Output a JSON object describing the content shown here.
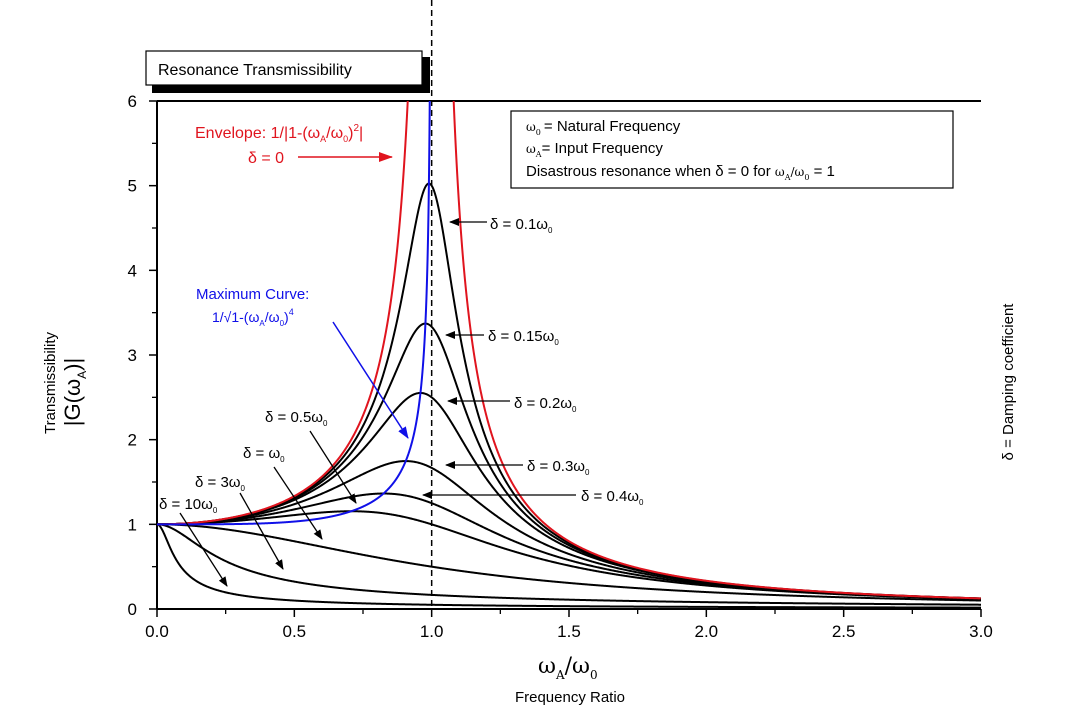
{
  "chart_data": {
    "type": "line",
    "title": "Resonance Transmissibility",
    "xlabel": {
      "main": "ω",
      "sub": "A",
      "mid": "/ω",
      "sub2": "0",
      "caption": "Frequency Ratio"
    },
    "ylabel": {
      "caption": "Transmissibility",
      "main": "|G(ω",
      "sub": "A",
      "end": ")|"
    },
    "right_label": "δ = Damping coefficient",
    "xlim": [
      0,
      3.0
    ],
    "ylim": [
      0,
      6
    ],
    "xticks": [
      "0.0",
      "0.5",
      "1.0",
      "1.5",
      "2.0",
      "2.5",
      "3.0"
    ],
    "yticks": [
      "0",
      "1",
      "2",
      "3",
      "4",
      "5",
      "6"
    ],
    "grid": false,
    "reference_line": {
      "x": 1.0,
      "style": "dashed"
    },
    "legend_box": {
      "line1": {
        "sym": "ω",
        "sub": "0",
        "text": "= Natural Frequency"
      },
      "line2": {
        "sym": "ω",
        "sub": "A",
        "text": "= Input Frequency"
      },
      "line3": {
        "text": "Disastrous resonance when δ = 0 for ",
        "sym": "ω",
        "sub": "A",
        "mid": "/ω",
        "sub2": "0",
        "end": " = 1"
      }
    },
    "series": [
      {
        "name": "Envelope",
        "kind": "envelope",
        "color": "#e0141e",
        "label": {
          "a": "Envelope: 1/|1-(ω",
          "sub": "A",
          "b": "/ω",
          "sub2": "0",
          "c": ")",
          "sup": "2",
          "d": "|",
          "line2": "δ = 0"
        }
      },
      {
        "name": "Maximum Curve",
        "kind": "maximum",
        "color": "#1010e8",
        "label": {
          "line1": "Maximum Curve:",
          "a": "1/√1-(ω",
          "sub": "A",
          "b": "/ω",
          "sub2": "0",
          "c": ")",
          "sup": "4"
        }
      },
      {
        "kind": "damped",
        "delta": 0.1,
        "color": "#000000",
        "label": {
          "main": "δ = 0.1ω",
          "sub": "0"
        }
      },
      {
        "kind": "damped",
        "delta": 0.15,
        "color": "#000000",
        "label": {
          "main": "δ = 0.15ω",
          "sub": "0"
        }
      },
      {
        "kind": "damped",
        "delta": 0.2,
        "color": "#000000",
        "label": {
          "main": "δ = 0.2ω",
          "sub": "0"
        }
      },
      {
        "kind": "damped",
        "delta": 0.3,
        "color": "#000000",
        "label": {
          "main": "δ = 0.3ω",
          "sub": "0"
        }
      },
      {
        "kind": "damped",
        "delta": 0.4,
        "color": "#000000",
        "label": {
          "main": "δ = 0.4ω",
          "sub": "0"
        }
      },
      {
        "kind": "damped",
        "delta": 0.5,
        "color": "#000000",
        "label": {
          "main": "δ = 0.5ω",
          "sub": "0"
        }
      },
      {
        "kind": "damped",
        "delta": 1,
        "color": "#000000",
        "label": {
          "main": "δ = ω",
          "sub": "0"
        }
      },
      {
        "kind": "damped",
        "delta": 3,
        "color": "#000000",
        "label": {
          "main": "δ = 3ω",
          "sub": "0"
        }
      },
      {
        "kind": "damped",
        "delta": 10,
        "color": "#000000",
        "label": {
          "main": "δ = 10ω",
          "sub": "0"
        }
      }
    ]
  }
}
